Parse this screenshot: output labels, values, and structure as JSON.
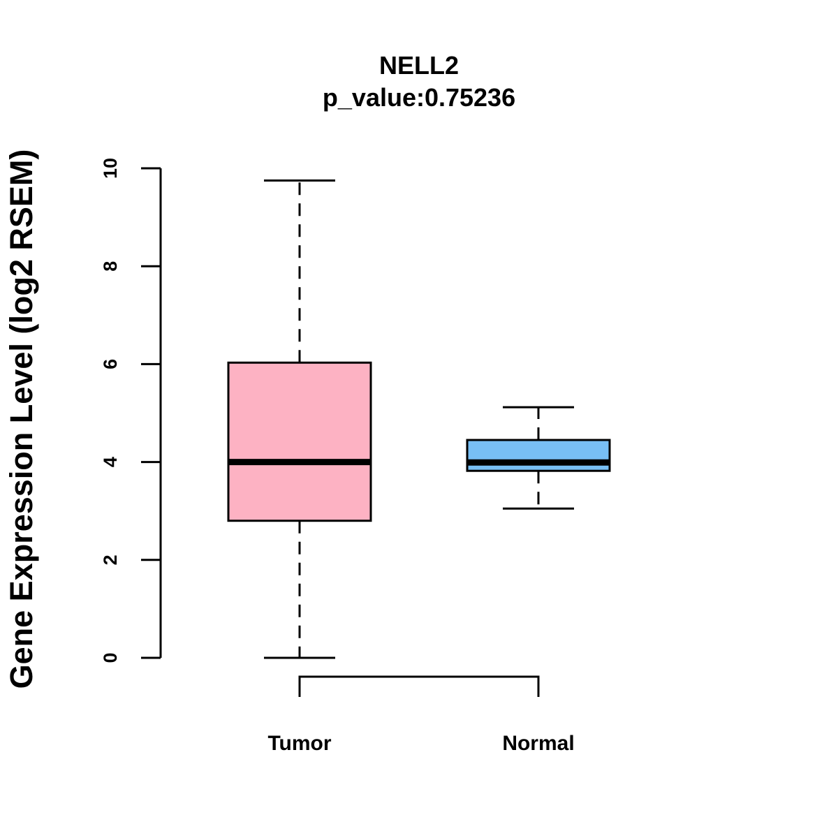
{
  "chart_data": {
    "type": "boxplot",
    "title": "NELL2",
    "subtitle": "p_value:0.75236",
    "xlabel": "",
    "ylabel": "Gene Expression Level (log2 RSEM)",
    "ylim": [
      0,
      10
    ],
    "yticks": [
      "0",
      "2",
      "4",
      "6",
      "8",
      "10"
    ],
    "categories": [
      "Tumor",
      "Normal"
    ],
    "series": [
      {
        "name": "Tumor",
        "whisker_low": 0.0,
        "q1": 2.8,
        "median": 4.0,
        "q3": 6.03,
        "whisker_high": 9.75,
        "color": "#FDB2C3"
      },
      {
        "name": "Normal",
        "whisker_low": 3.05,
        "q1": 3.82,
        "median": 3.99,
        "q3": 4.45,
        "whisker_high": 5.12,
        "color": "#78BFF5"
      }
    ]
  }
}
